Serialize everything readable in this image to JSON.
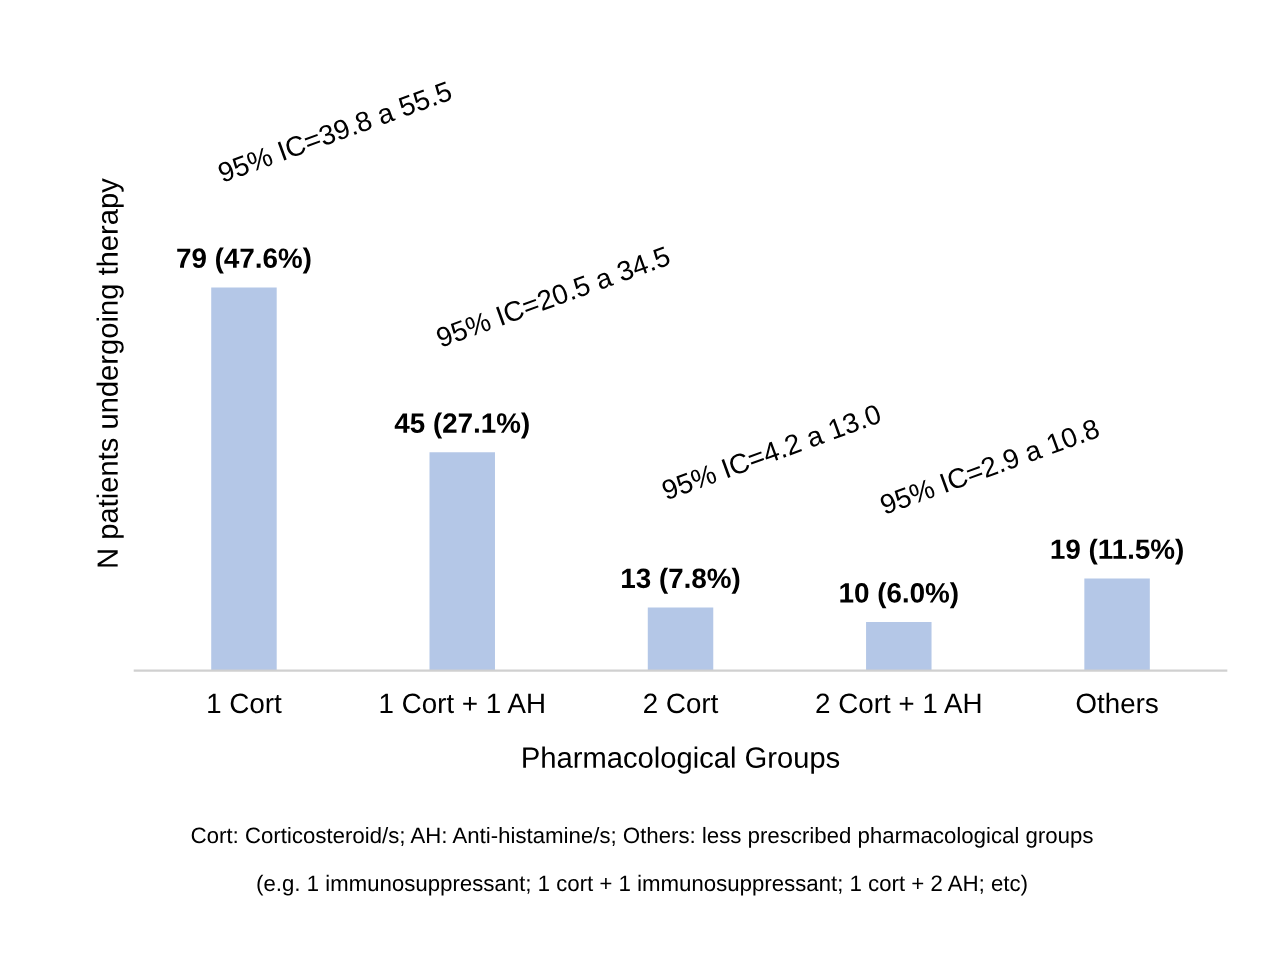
{
  "chart_data": {
    "type": "bar",
    "xlabel": "Pharmacological Groups",
    "ylabel": "N patients undergoing therapy",
    "categories": [
      "1 Cort",
      "1 Cort + 1 AH",
      "2 Cort",
      "2 Cort + 1 AH",
      "Others"
    ],
    "values": [
      79,
      45,
      13,
      10,
      19
    ],
    "value_labels": [
      "79 (47.6%)",
      "45 (27.1%)",
      "13 (7.8%)",
      "10 (6.0%)",
      "19 (11.5%)"
    ],
    "color": "#b4c7e7",
    "grid": false,
    "legend": false,
    "annotations": [
      "95% IC=39.8 a 55.5",
      "95% IC=20.5 a 34.5",
      "95% IC=4.2 a 13.0",
      "95% IC=2.9 a 10.8",
      "Cort: Corticosteroid/s; AH: Anti-histamine/s; Others: less prescribed pharmacological groups",
      "(e.g. 1 immunosuppressant; 1 cort + 1 immunosuppressant; 1 cort + 2 AH; etc)"
    ]
  }
}
